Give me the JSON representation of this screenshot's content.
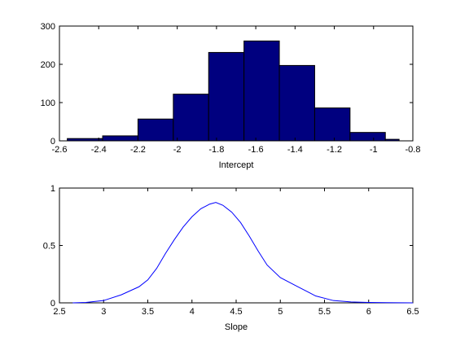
{
  "chart_data": [
    {
      "type": "bar",
      "xlabel": "Intercept",
      "ylabel": "",
      "xlim": [
        -2.6,
        -0.8
      ],
      "ylim": [
        0,
        300
      ],
      "xticks": [
        "-2.6",
        "-2.4",
        "-2.2",
        "-2",
        "-1.8",
        "-1.6",
        "-1.4",
        "-1.2",
        "-1",
        "-0.8"
      ],
      "yticks": [
        "0",
        "100",
        "200",
        "300"
      ],
      "bin_edges": [
        -2.56,
        -2.38,
        -2.2,
        -2.02,
        -1.84,
        -1.66,
        -1.48,
        -1.3,
        -1.12,
        -0.94,
        -0.87
      ],
      "values": [
        6,
        13,
        57,
        122,
        231,
        261,
        197,
        86,
        22,
        4
      ],
      "bar_color": "#00007f",
      "grid": false
    },
    {
      "type": "line",
      "xlabel": "Slope",
      "ylabel": "",
      "xlim": [
        2.5,
        6.5
      ],
      "ylim": [
        0,
        1
      ],
      "xticks": [
        "2.5",
        "3",
        "3.5",
        "4",
        "4.5",
        "5",
        "5.5",
        "6",
        "6.5"
      ],
      "yticks": [
        "0",
        "0.5",
        "1"
      ],
      "x": [
        2.65,
        2.8,
        3.0,
        3.2,
        3.4,
        3.5,
        3.6,
        3.7,
        3.8,
        3.9,
        4.0,
        4.1,
        4.2,
        4.27,
        4.35,
        4.45,
        4.55,
        4.65,
        4.75,
        4.85,
        5.0,
        5.2,
        5.4,
        5.6,
        5.8,
        6.0,
        6.2,
        6.5
      ],
      "y": [
        0.0,
        0.004,
        0.02,
        0.07,
        0.14,
        0.2,
        0.3,
        0.43,
        0.55,
        0.66,
        0.75,
        0.82,
        0.86,
        0.875,
        0.85,
        0.79,
        0.7,
        0.58,
        0.45,
        0.33,
        0.22,
        0.14,
        0.06,
        0.02,
        0.008,
        0.004,
        0.002,
        0.0
      ],
      "line_color": "#0000ff",
      "grid": false
    }
  ]
}
